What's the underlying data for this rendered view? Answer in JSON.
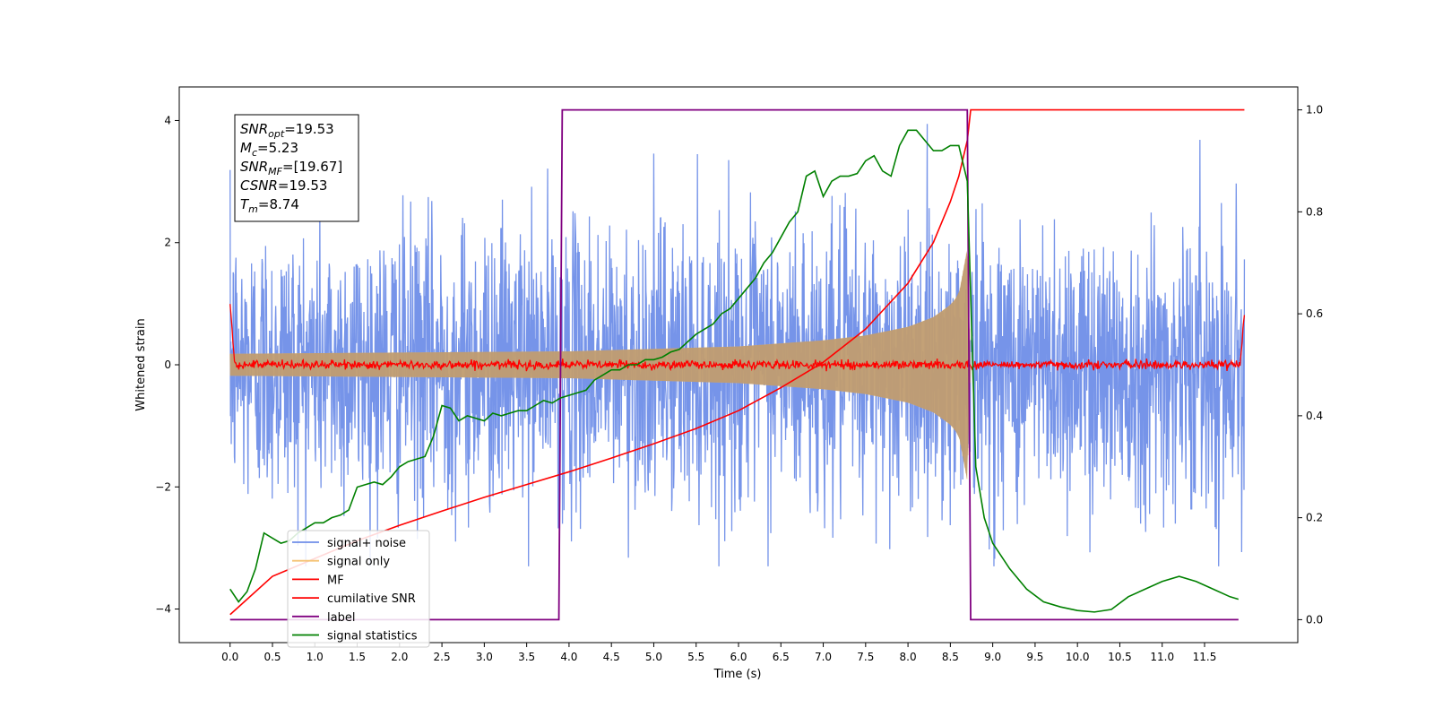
{
  "chart_data": {
    "type": "line",
    "xlabel": "Time (s)",
    "ylabel": "Whitened strain",
    "xlim": [
      -0.6,
      12.6
    ],
    "ylim": [
      -4.55,
      4.55
    ],
    "y2lim": [
      -0.045,
      1.045
    ],
    "xticks": [
      0.0,
      0.5,
      1.0,
      1.5,
      2.0,
      2.5,
      3.0,
      3.5,
      4.0,
      4.5,
      5.0,
      5.5,
      6.0,
      6.5,
      7.0,
      7.5,
      8.0,
      8.5,
      9.0,
      9.5,
      10.0,
      10.5,
      11.0,
      11.5
    ],
    "xtick_labels": [
      "0.0",
      "0.5",
      "1.0",
      "1.5",
      "2.0",
      "2.5",
      "3.0",
      "3.5",
      "4.0",
      "4.5",
      "5.0",
      "5.5",
      "6.0",
      "6.5",
      "7.0",
      "7.5",
      "8.0",
      "8.5",
      "9.0",
      "9.5",
      "10.0",
      "10.5",
      "11.0",
      "11.5"
    ],
    "yticks": [
      -4,
      -2,
      0,
      2,
      4
    ],
    "ytick_labels": [
      "−4",
      "−2",
      "0",
      "2",
      "4"
    ],
    "y2ticks": [
      0.0,
      0.2,
      0.4,
      0.6,
      0.8,
      1.0
    ],
    "y2tick_labels": [
      "0.0",
      "0.2",
      "0.4",
      "0.6",
      "0.8",
      "1.0"
    ],
    "annotation": [
      {
        "base": "SNR",
        "sub": "opt",
        "rest": "=19.53"
      },
      {
        "base": "M",
        "sub": "c",
        "rest": "=5.23"
      },
      {
        "base": "SNR",
        "sub": "MF",
        "rest": "=[19.67]"
      },
      {
        "base": "CSNR",
        "sub": "",
        "rest": "=19.53"
      },
      {
        "base": "T",
        "sub": "m",
        "rest": "=8.74"
      }
    ],
    "legend": {
      "location": "lower-left",
      "entries": [
        "signal+ noise",
        "signal only",
        "MF",
        "cumilative SNR",
        "label",
        "signal statistics"
      ]
    },
    "series": [
      {
        "key": "noise",
        "name": "signal+ noise",
        "axis": "left",
        "color": "#6f8ee8",
        "x_range": [
          0,
          11.97
        ],
        "amplitude_range": [
          -3.3,
          4.1
        ]
      },
      {
        "key": "signal",
        "name": "signal only",
        "axis": "left",
        "color": "#f5c374",
        "x_range": [
          0,
          8.74
        ],
        "envelope": {
          "x": [
            0,
            2,
            4,
            6,
            7,
            7.5,
            8,
            8.3,
            8.5,
            8.6,
            8.7,
            8.74
          ],
          "y": [
            0.18,
            0.2,
            0.22,
            0.3,
            0.4,
            0.48,
            0.62,
            0.78,
            0.98,
            1.15,
            1.9,
            0.0
          ]
        }
      },
      {
        "key": "mf",
        "name": "MF",
        "axis": "left",
        "color": "#ff0000",
        "x_range": [
          0,
          11.97
        ],
        "values_approx": [
          1.0,
          0.0,
          0.0,
          0.9
        ]
      },
      {
        "key": "csnr",
        "name": "cumilative SNR",
        "axis": "right",
        "color": "#ff0000",
        "x": [
          0,
          0.5,
          1,
          1.5,
          2,
          2.5,
          3,
          3.5,
          4,
          4.5,
          5,
          5.5,
          6,
          6.5,
          7,
          7.5,
          8,
          8.3,
          8.5,
          8.6,
          8.7,
          8.74,
          11.97
        ],
        "y": [
          0.01,
          0.085,
          0.12,
          0.155,
          0.185,
          0.213,
          0.24,
          0.265,
          0.29,
          0.317,
          0.345,
          0.375,
          0.41,
          0.455,
          0.505,
          0.57,
          0.66,
          0.74,
          0.82,
          0.87,
          0.94,
          1.0,
          1.0
        ]
      },
      {
        "key": "label",
        "name": "label",
        "axis": "right",
        "color": "#800080",
        "x": [
          0,
          3.88,
          3.92,
          8.7,
          8.74,
          11.9
        ],
        "y": [
          0,
          0,
          1,
          1,
          0,
          0
        ]
      },
      {
        "key": "stat",
        "name": "signal statistics",
        "axis": "right",
        "color": "#008000",
        "x": [
          0,
          0.1,
          0.2,
          0.3,
          0.4,
          0.5,
          0.6,
          0.7,
          0.8,
          0.9,
          1.0,
          1.1,
          1.2,
          1.3,
          1.4,
          1.5,
          1.6,
          1.7,
          1.8,
          1.9,
          2.0,
          2.1,
          2.2,
          2.3,
          2.4,
          2.5,
          2.6,
          2.7,
          2.8,
          2.9,
          3.0,
          3.1,
          3.2,
          3.3,
          3.4,
          3.5,
          3.6,
          3.7,
          3.8,
          3.9,
          4.0,
          4.1,
          4.2,
          4.3,
          4.4,
          4.5,
          4.6,
          4.7,
          4.8,
          4.9,
          5.0,
          5.1,
          5.2,
          5.3,
          5.4,
          5.5,
          5.6,
          5.7,
          5.8,
          5.9,
          6.0,
          6.1,
          6.2,
          6.3,
          6.4,
          6.5,
          6.6,
          6.7,
          6.8,
          6.9,
          7.0,
          7.1,
          7.2,
          7.3,
          7.4,
          7.5,
          7.6,
          7.7,
          7.8,
          7.9,
          8.0,
          8.1,
          8.2,
          8.3,
          8.4,
          8.5,
          8.6,
          8.7,
          8.8,
          8.9,
          9.0,
          9.2,
          9.4,
          9.6,
          9.8,
          10.0,
          10.2,
          10.4,
          10.6,
          10.8,
          11.0,
          11.2,
          11.4,
          11.6,
          11.8,
          11.9
        ],
        "y": [
          0.06,
          0.035,
          0.055,
          0.1,
          0.17,
          0.16,
          0.15,
          0.155,
          0.17,
          0.18,
          0.19,
          0.19,
          0.2,
          0.205,
          0.215,
          0.26,
          0.265,
          0.27,
          0.265,
          0.28,
          0.3,
          0.31,
          0.315,
          0.32,
          0.36,
          0.42,
          0.415,
          0.39,
          0.4,
          0.395,
          0.39,
          0.405,
          0.4,
          0.405,
          0.41,
          0.41,
          0.42,
          0.43,
          0.425,
          0.435,
          0.44,
          0.445,
          0.45,
          0.47,
          0.48,
          0.49,
          0.49,
          0.5,
          0.5,
          0.51,
          0.51,
          0.515,
          0.525,
          0.53,
          0.545,
          0.56,
          0.57,
          0.58,
          0.6,
          0.61,
          0.63,
          0.65,
          0.67,
          0.7,
          0.72,
          0.75,
          0.78,
          0.8,
          0.87,
          0.88,
          0.83,
          0.86,
          0.87,
          0.87,
          0.875,
          0.9,
          0.91,
          0.88,
          0.87,
          0.93,
          0.96,
          0.96,
          0.94,
          0.92,
          0.92,
          0.93,
          0.93,
          0.86,
          0.3,
          0.2,
          0.15,
          0.1,
          0.06,
          0.035,
          0.025,
          0.018,
          0.015,
          0.02,
          0.045,
          0.06,
          0.075,
          0.085,
          0.075,
          0.06,
          0.045,
          0.04
        ]
      }
    ]
  }
}
